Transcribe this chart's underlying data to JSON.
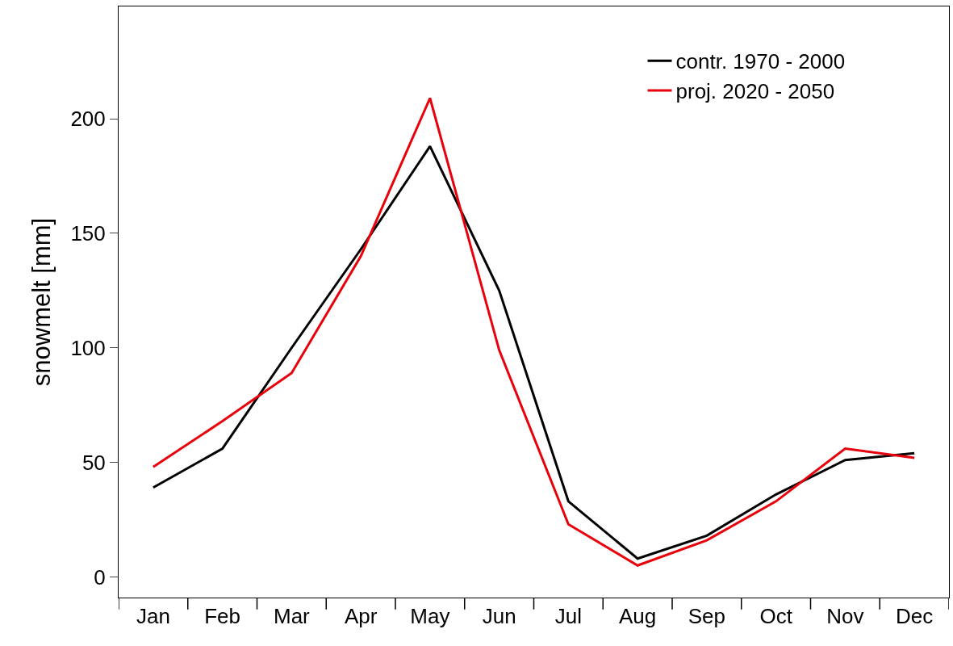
{
  "chart_data": {
    "type": "line",
    "ylabel": "snowmelt [mm]",
    "categories": [
      "Jan",
      "Feb",
      "Mar",
      "Apr",
      "May",
      "Jun",
      "Jul",
      "Aug",
      "Sep",
      "Oct",
      "Nov",
      "Dec"
    ],
    "series": [
      {
        "name": "contr. 1970 - 2000",
        "color": "#000000",
        "values": [
          39,
          56,
          100,
          143,
          188,
          125,
          33,
          8,
          18,
          36,
          51,
          54
        ]
      },
      {
        "name": "proj. 2020 - 2050",
        "color": "#e8000b",
        "values": [
          48,
          68,
          89,
          140,
          209,
          99,
          23,
          5,
          16,
          33,
          56,
          52
        ]
      }
    ],
    "ylim": [
      -9,
      249
    ],
    "yticks": [
      0,
      50,
      100,
      150,
      200
    ],
    "legend": "top right",
    "marker": "none",
    "line_style": "solid"
  }
}
